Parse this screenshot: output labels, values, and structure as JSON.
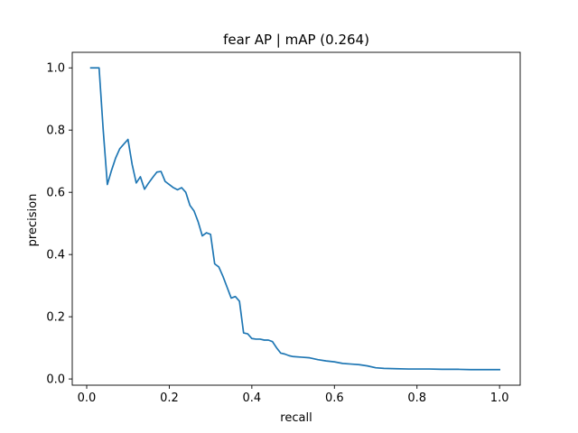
{
  "chart_data": {
    "type": "line",
    "title": "fear AP | mAP (0.264)",
    "xlabel": "recall",
    "ylabel": "precision",
    "xlim": [
      -0.035,
      1.05
    ],
    "ylim": [
      -0.02,
      1.05
    ],
    "xticks": [
      0.0,
      0.2,
      0.4,
      0.6,
      0.8,
      1.0
    ],
    "xtick_labels": [
      "0.0",
      "0.2",
      "0.4",
      "0.6",
      "0.8",
      "1.0"
    ],
    "yticks": [
      0.0,
      0.2,
      0.4,
      0.6,
      0.8,
      1.0
    ],
    "ytick_labels": [
      "0.0",
      "0.2",
      "0.4",
      "0.6",
      "0.8",
      "1.0"
    ],
    "grid": false,
    "line_color": "#1f77b4",
    "series": [
      {
        "x": [
          0.01,
          0.03,
          0.04,
          0.05,
          0.06,
          0.07,
          0.08,
          0.09,
          0.1,
          0.11,
          0.12,
          0.13,
          0.14,
          0.15,
          0.16,
          0.17,
          0.18,
          0.19,
          0.2,
          0.21,
          0.22,
          0.23,
          0.24,
          0.25,
          0.26,
          0.27,
          0.28,
          0.29,
          0.3,
          0.31,
          0.32,
          0.33,
          0.34,
          0.35,
          0.36,
          0.37,
          0.38,
          0.39,
          0.4,
          0.41,
          0.42,
          0.43,
          0.44,
          0.45,
          0.46,
          0.47,
          0.48,
          0.49,
          0.5,
          0.52,
          0.54,
          0.56,
          0.58,
          0.6,
          0.62,
          0.64,
          0.66,
          0.68,
          0.7,
          0.72,
          0.75,
          0.78,
          0.8,
          0.83,
          0.86,
          0.9,
          0.93,
          0.96,
          1.0
        ],
        "y": [
          1.0,
          1.0,
          0.8,
          0.625,
          0.67,
          0.71,
          0.74,
          0.755,
          0.77,
          0.69,
          0.63,
          0.65,
          0.61,
          0.63,
          0.648,
          0.665,
          0.667,
          0.635,
          0.625,
          0.615,
          0.608,
          0.615,
          0.6,
          0.558,
          0.54,
          0.505,
          0.46,
          0.47,
          0.465,
          0.37,
          0.36,
          0.33,
          0.295,
          0.26,
          0.265,
          0.25,
          0.148,
          0.145,
          0.13,
          0.128,
          0.128,
          0.125,
          0.125,
          0.12,
          0.1,
          0.083,
          0.08,
          0.075,
          0.072,
          0.07,
          0.068,
          0.062,
          0.058,
          0.055,
          0.05,
          0.048,
          0.046,
          0.042,
          0.036,
          0.034,
          0.033,
          0.032,
          0.032,
          0.032,
          0.031,
          0.031,
          0.03,
          0.03,
          0.03
        ]
      }
    ]
  }
}
